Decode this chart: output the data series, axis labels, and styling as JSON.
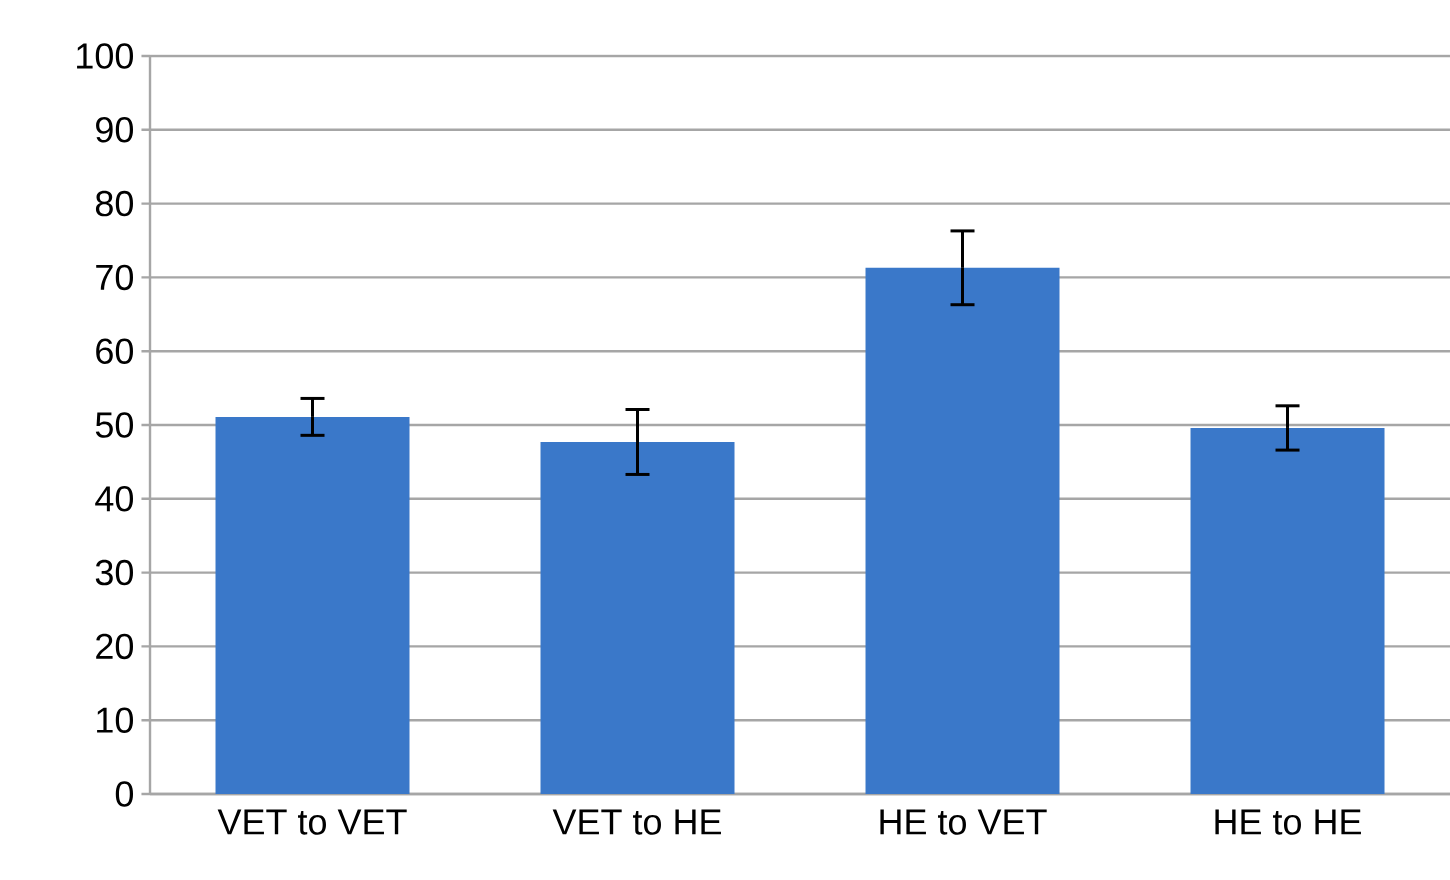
{
  "chart_data": {
    "type": "bar",
    "categories": [
      "VET to VET",
      "VET to HE",
      "HE to VET",
      "HE to HE"
    ],
    "values": [
      51.1,
      47.7,
      71.3,
      49.6
    ],
    "errors": [
      2.5,
      4.4,
      5,
      3
    ],
    "color": "#3a78c9",
    "ylim": [
      0,
      100
    ],
    "yticks": [
      0,
      10,
      20,
      30,
      40,
      50,
      60,
      70,
      80,
      90,
      100
    ],
    "grid": "y"
  }
}
